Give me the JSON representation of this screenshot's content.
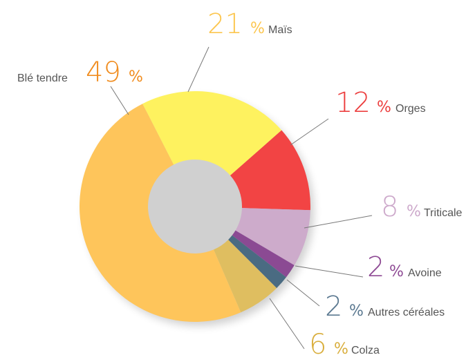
{
  "chart_data": {
    "type": "donut",
    "categories": [
      "Maïs",
      "Orges",
      "Triticale",
      "Avoine",
      "Autres céréales",
      "Colza",
      "Blé tendre"
    ],
    "values": [
      21,
      12,
      8,
      2,
      2,
      6,
      49
    ],
    "unit": "%",
    "colors": [
      "#fef25f",
      "#f24444",
      "#cdabcb",
      "#8b4a93",
      "#4a6b82",
      "#dfbe60",
      "#fec55b"
    ],
    "label_colors": [
      "#fcc64f",
      "#ec3e3e",
      "#cda9cb",
      "#8e4a94",
      "#5a7890",
      "#d9ae3c",
      "#f08c1e"
    ]
  }
}
